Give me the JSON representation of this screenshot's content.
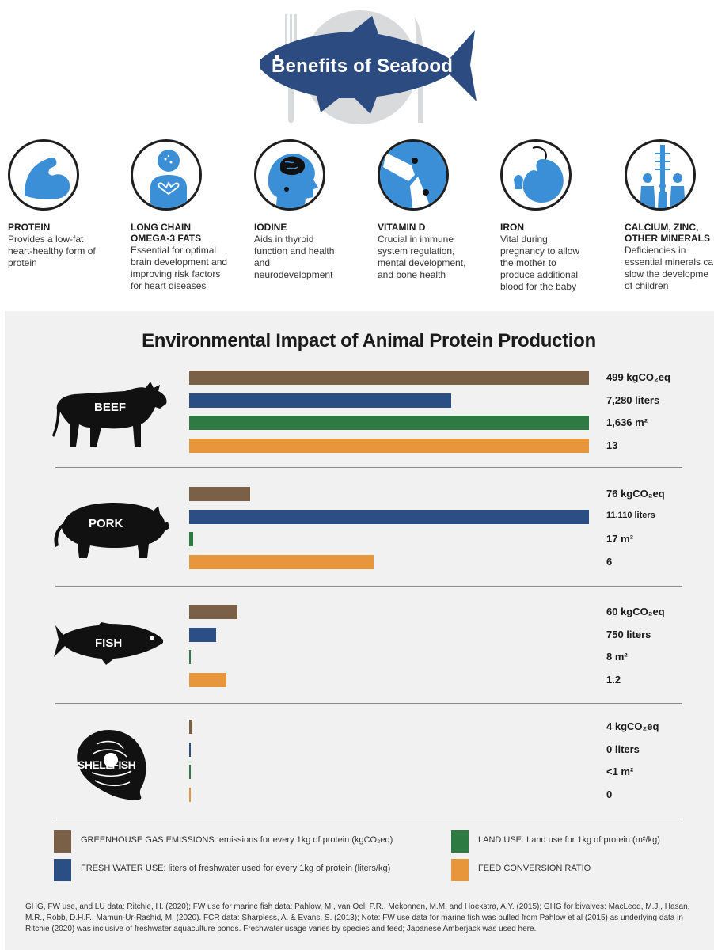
{
  "header": {
    "title": "Benefits of Seafood"
  },
  "benefits": [
    {
      "title_lines": [
        "PROTEIN"
      ],
      "desc_lines": [
        "Provides a low-fat",
        "heart-healthy form of",
        "protein"
      ],
      "icon": "muscle-arm-icon"
    },
    {
      "title_lines": [
        "LONG CHAIN",
        "OMEGA-3 FATS"
      ],
      "desc_lines": [
        "Essential for optimal",
        "brain development and",
        "improving risk factors",
        "for heart diseases"
      ],
      "icon": "heart-person-icon"
    },
    {
      "title_lines": [
        "IODINE"
      ],
      "desc_lines": [
        "Aids in thyroid",
        "function and health",
        "and",
        "neurodevelopment"
      ],
      "icon": "brain-head-icon"
    },
    {
      "title_lines": [
        "VITAMIN D"
      ],
      "desc_lines": [
        "Crucial in immune",
        "system regulation,",
        "mental development,",
        "and bone health"
      ],
      "icon": "knee-bone-icon"
    },
    {
      "title_lines": [
        "IRON"
      ],
      "desc_lines": [
        "Vital during",
        "pregnancy to allow",
        "the mother to",
        "produce additional",
        "blood for the baby"
      ],
      "icon": "fetus-icon"
    },
    {
      "title_lines": [
        "CALCIUM, ZINC,",
        "OTHER MINERALS"
      ],
      "desc_lines": [
        "Deficiencies in",
        "essential minerals ca",
        "slow the developme",
        "of children"
      ],
      "icon": "family-growth-icon"
    }
  ],
  "colors": {
    "ghg": "#7a6047",
    "water": "#2b4e84",
    "land": "#2e7a43",
    "fcr": "#e8963b",
    "header_fish": "#2c4b80"
  },
  "chart_data": {
    "type": "bar",
    "orientation": "horizontal",
    "title": "Environmental Impact of Animal Protein Production",
    "grid": false,
    "legend_placement": "bottom",
    "scaling_note": "each metric scaled to its own maximum",
    "categories": [
      "BEEF",
      "PORK",
      "FISH",
      "SHELLFISH"
    ],
    "series": [
      {
        "key": "ghg",
        "name": "GREENHOUSE GAS EMISSIONS: emissions for every 1kg of protein (kgCO₂eq)",
        "values": [
          499,
          76,
          60,
          4
        ],
        "labels": [
          "499 kgCO₂eq",
          "76 kgCO₂eq",
          "60 kgCO₂eq",
          "4 kgCO₂eq"
        ]
      },
      {
        "key": "water",
        "name": "FRESH WATER USE: liters of freshwater used for every 1kg of protein (liters/kg)",
        "values": [
          7280,
          11110,
          750,
          0
        ],
        "labels": [
          "7,280 liters",
          "11,110 liters",
          "750 liters",
          "0 liters"
        ]
      },
      {
        "key": "land",
        "name": "LAND USE: Land use for 1kg of protein (m²/kg)",
        "values": [
          1636,
          17,
          8,
          0.5
        ],
        "labels": [
          "1,636 m²",
          "17 m²",
          "8 m²",
          "<1 m²"
        ]
      },
      {
        "key": "fcr",
        "name": "FEED CONVERSION RATIO",
        "values": [
          13,
          6,
          1.2,
          0
        ],
        "labels": [
          "13",
          "6",
          "1.2",
          "0"
        ]
      }
    ]
  },
  "citation": "GHG, FW use, and LU data: Ritchie, H. (2020); FW use for marine fish data: Pahlow, M., van Oel, P.R., Mekonnen, M.M, and Hoekstra, A.Y. (2015); GHG for bivalves: MacLeod, M.J., Hasan, M.R., Robb, D.H.F., Mamun-Ur-Rashid, M. (2020). FCR data: Sharpless, A. & Evans, S. (2013);  Note: FW use data for marine fish was pulled from Pahlow et al (2015)  as underlying data in Ritchie (2020) was inclusive of freshwater aquaculture ponds. Freshwater usage varies by species and feed; Japanese Amberjack was used here."
}
